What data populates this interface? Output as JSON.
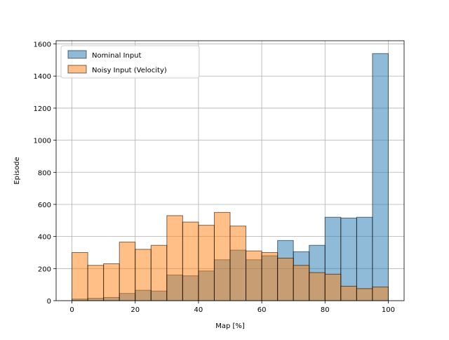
{
  "chart_data": {
    "type": "bar",
    "title": "",
    "xlabel": "Map [%]",
    "ylabel": "Episode",
    "xlim": [
      -5,
      105
    ],
    "ylim": [
      0,
      1620
    ],
    "xticks": [
      0,
      20,
      40,
      60,
      80,
      100
    ],
    "yticks": [
      0,
      200,
      400,
      600,
      800,
      1000,
      1200,
      1400,
      1600
    ],
    "grid": true,
    "legend_position": "upper-left",
    "bin_edges": [
      0,
      5,
      10,
      15,
      20,
      25,
      30,
      35,
      40,
      45,
      50,
      55,
      60,
      65,
      70,
      75,
      80,
      85,
      90,
      95,
      100
    ],
    "series": [
      {
        "name": "Nominal Input",
        "color": "#1f77b4",
        "values": [
          10,
          15,
          20,
          45,
          65,
          60,
          160,
          155,
          185,
          255,
          315,
          255,
          280,
          375,
          305,
          345,
          520,
          515,
          520,
          1540
        ]
      },
      {
        "name": "Noisy Input (Velocity)",
        "color": "#ff7f0e",
        "values": [
          300,
          220,
          230,
          365,
          320,
          345,
          530,
          490,
          470,
          550,
          465,
          310,
          300,
          265,
          220,
          175,
          165,
          90,
          75,
          85
        ]
      }
    ]
  }
}
